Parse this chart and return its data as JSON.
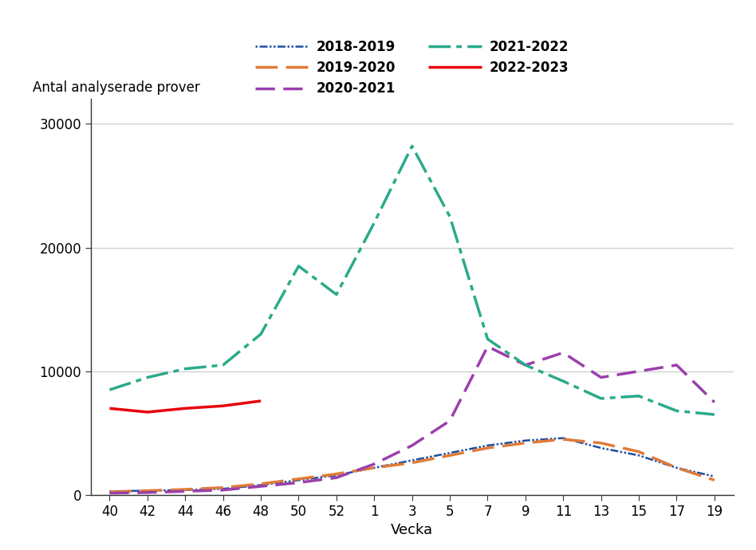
{
  "x_labels": [
    "40",
    "42",
    "44",
    "46",
    "48",
    "50",
    "52",
    "1",
    "3",
    "5",
    "7",
    "9",
    "11",
    "13",
    "15",
    "17",
    "19"
  ],
  "x_positions": [
    0,
    1,
    2,
    3,
    4,
    5,
    6,
    7,
    8,
    9,
    10,
    11,
    12,
    13,
    14,
    15,
    16
  ],
  "series": {
    "2018-2019": {
      "color": "#1f4e9e",
      "linewidth": 1.8,
      "values": [
        300,
        350,
        400,
        500,
        800,
        1200,
        1600,
        2200,
        2800,
        3400,
        4000,
        4400,
        4600,
        3800,
        3200,
        2200,
        1500
      ]
    },
    "2019-2020": {
      "color": "#e07b39",
      "linewidth": 2.5,
      "values": [
        250,
        350,
        450,
        600,
        900,
        1300,
        1700,
        2200,
        2600,
        3200,
        3800,
        4200,
        4500,
        4200,
        3500,
        2200,
        1200
      ]
    },
    "2020-2021": {
      "color": "#9b3fac",
      "linewidth": 2.5,
      "values": [
        150,
        200,
        300,
        400,
        700,
        1000,
        1400,
        2500,
        4000,
        6000,
        12000,
        10500,
        11500,
        9500,
        10000,
        10500,
        7500
      ]
    },
    "2021-2022": {
      "color": "#2aaa8a",
      "linewidth": 2.5,
      "values": [
        8500,
        9500,
        10200,
        10500,
        13000,
        18500,
        16200,
        22000,
        28200,
        22500,
        12600,
        10500,
        9200,
        7800,
        8000,
        6800,
        6500
      ]
    },
    "2022-2023": {
      "color": "#e8000b",
      "linewidth": 2.5,
      "values": [
        7000,
        6700,
        7000,
        7200,
        7600,
        null,
        null,
        null,
        null,
        null,
        null,
        null,
        null,
        null,
        null,
        null,
        null
      ]
    }
  },
  "ylabel": "Antal analyserade prover",
  "xlabel": "Vecka",
  "ylim": [
    0,
    32000
  ],
  "yticks": [
    0,
    10000,
    20000,
    30000
  ],
  "ytick_labels": [
    "0",
    "10000",
    "20000",
    "30000"
  ],
  "background_color": "#ffffff",
  "grid_color": "#d0d0d0",
  "legend_entries": [
    "2018-2019",
    "2019-2020",
    "2020-2021",
    "2021-2022",
    "2022-2023"
  ]
}
